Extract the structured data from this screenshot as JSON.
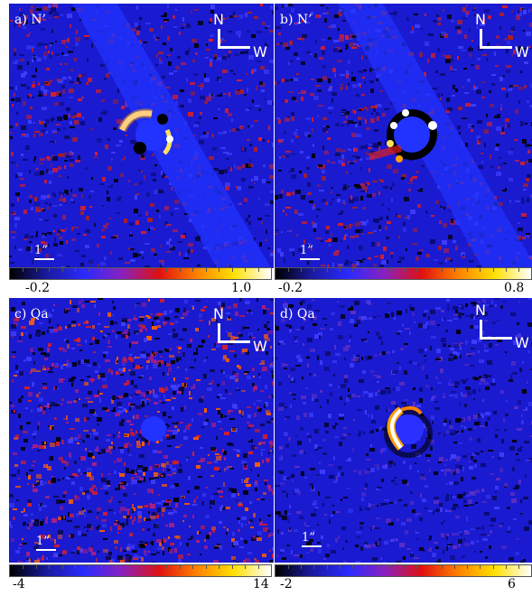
{
  "panels": [
    {
      "label": "a) N’",
      "compass_n": "N",
      "compass_w": "W",
      "scale": "1”",
      "cb_min": "-0.2",
      "cb_max": "1.0"
    },
    {
      "label": "b) N’",
      "compass_n": "N",
      "compass_w": "W",
      "scale": "1”",
      "cb_min": "-0.2",
      "cb_max": "0.8"
    },
    {
      "label": "c) Qa",
      "compass_n": "N",
      "compass_w": "W",
      "scale": "1”",
      "cb_min": "-4",
      "cb_max": "14"
    },
    {
      "label": "d) Qa",
      "compass_n": "N",
      "compass_w": "W",
      "scale": "1”",
      "cb_min": "-2",
      "cb_max": "6"
    }
  ],
  "colormap": [
    "#000000",
    "#1a1aa0",
    "#2a2aff",
    "#8a20c0",
    "#e01010",
    "#ff8000",
    "#ffe000",
    "#ffffff"
  ]
}
